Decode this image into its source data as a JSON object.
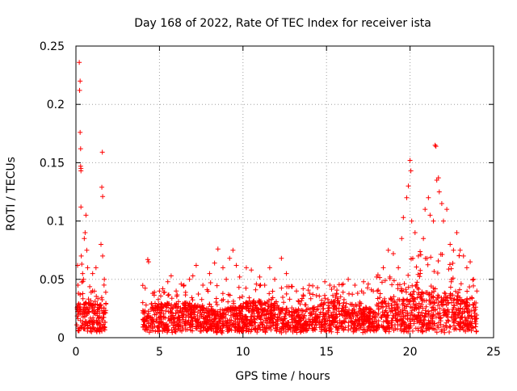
{
  "chart_data": {
    "type": "scatter",
    "title": "Day 168 of 2022, Rate Of TEC Index for receiver ista",
    "xlabel": "GPS time / hours",
    "ylabel": "ROTI / TECUs",
    "xlim": [
      0,
      25
    ],
    "ylim": [
      0,
      0.25
    ],
    "x_ticks": [
      0,
      5,
      10,
      15,
      20,
      25
    ],
    "x_tick_labels": [
      "0",
      "5",
      "10",
      "15",
      "20",
      "25"
    ],
    "y_ticks": [
      0,
      0.05,
      0.1,
      0.15,
      0.2,
      0.25
    ],
    "y_tick_labels": [
      "0",
      "0.05",
      "0.1",
      "0.15",
      "0.2",
      "0.25"
    ],
    "grid": true,
    "marker": "plus",
    "color": "#ff0000",
    "series": [
      {
        "name": "ROTI",
        "notes": "dense cloud of ROTI samples; gap between ~1.8 h and ~4 h",
        "points": [
          [
            0.1,
            0.062
          ],
          [
            0.12,
            0.045
          ],
          [
            0.15,
            0.038
          ],
          [
            0.18,
            0.02
          ],
          [
            0.2,
            0.236
          ],
          [
            0.22,
            0.212
          ],
          [
            0.25,
            0.22
          ],
          [
            0.25,
            0.176
          ],
          [
            0.28,
            0.162
          ],
          [
            0.28,
            0.147
          ],
          [
            0.3,
            0.143
          ],
          [
            0.3,
            0.145
          ],
          [
            0.3,
            0.112
          ],
          [
            0.32,
            0.07
          ],
          [
            0.35,
            0.063
          ],
          [
            0.4,
            0.055
          ],
          [
            0.45,
            0.05
          ],
          [
            0.5,
            0.085
          ],
          [
            0.55,
            0.09
          ],
          [
            0.6,
            0.105
          ],
          [
            0.65,
            0.075
          ],
          [
            0.7,
            0.06
          ],
          [
            1.0,
            0.055
          ],
          [
            1.2,
            0.06
          ],
          [
            1.5,
            0.08
          ],
          [
            1.6,
            0.07
          ],
          [
            1.55,
            0.129
          ],
          [
            1.6,
            0.121
          ],
          [
            1.58,
            0.159
          ],
          [
            1.7,
            0.05
          ],
          [
            4.0,
            0.03
          ],
          [
            4.2,
            0.028
          ],
          [
            4.3,
            0.067
          ],
          [
            4.35,
            0.065
          ],
          [
            4.6,
            0.038
          ],
          [
            5.0,
            0.04
          ],
          [
            5.2,
            0.042
          ],
          [
            5.5,
            0.048
          ],
          [
            5.7,
            0.053
          ],
          [
            6.0,
            0.04
          ],
          [
            6.3,
            0.046
          ],
          [
            6.8,
            0.05
          ],
          [
            7.0,
            0.053
          ],
          [
            7.2,
            0.062
          ],
          [
            7.6,
            0.045
          ],
          [
            8.0,
            0.055
          ],
          [
            8.3,
            0.064
          ],
          [
            8.5,
            0.076
          ],
          [
            8.8,
            0.06
          ],
          [
            9.0,
            0.05
          ],
          [
            9.2,
            0.068
          ],
          [
            9.4,
            0.075
          ],
          [
            9.6,
            0.062
          ],
          [
            9.8,
            0.052
          ],
          [
            10.2,
            0.06
          ],
          [
            10.5,
            0.058
          ],
          [
            10.8,
            0.046
          ],
          [
            11.0,
            0.052
          ],
          [
            11.3,
            0.045
          ],
          [
            11.6,
            0.06
          ],
          [
            11.9,
            0.05
          ],
          [
            12.3,
            0.068
          ],
          [
            12.6,
            0.055
          ],
          [
            12.9,
            0.044
          ],
          [
            13.2,
            0.04
          ],
          [
            13.6,
            0.042
          ],
          [
            14.0,
            0.038
          ],
          [
            14.4,
            0.036
          ],
          [
            14.9,
            0.048
          ],
          [
            15.2,
            0.045
          ],
          [
            15.6,
            0.038
          ],
          [
            16.0,
            0.046
          ],
          [
            16.3,
            0.05
          ],
          [
            16.7,
            0.045
          ],
          [
            17.1,
            0.04
          ],
          [
            17.5,
            0.046
          ],
          [
            17.8,
            0.04
          ],
          [
            18.0,
            0.052
          ],
          [
            18.4,
            0.06
          ],
          [
            18.7,
            0.075
          ],
          [
            19.0,
            0.072
          ],
          [
            19.3,
            0.06
          ],
          [
            19.5,
            0.085
          ],
          [
            19.6,
            0.103
          ],
          [
            19.8,
            0.12
          ],
          [
            19.9,
            0.13
          ],
          [
            20.0,
            0.152
          ],
          [
            20.05,
            0.143
          ],
          [
            20.1,
            0.1
          ],
          [
            20.3,
            0.09
          ],
          [
            20.5,
            0.07
          ],
          [
            20.8,
            0.085
          ],
          [
            20.9,
            0.11
          ],
          [
            21.1,
            0.12
          ],
          [
            21.2,
            0.105
          ],
          [
            21.4,
            0.1
          ],
          [
            21.5,
            0.165
          ],
          [
            21.55,
            0.164
          ],
          [
            21.6,
            0.135
          ],
          [
            21.7,
            0.137
          ],
          [
            21.75,
            0.125
          ],
          [
            21.9,
            0.115
          ],
          [
            22.0,
            0.1
          ],
          [
            22.2,
            0.11
          ],
          [
            22.4,
            0.08
          ],
          [
            22.6,
            0.075
          ],
          [
            22.8,
            0.09
          ],
          [
            23.0,
            0.075
          ],
          [
            23.2,
            0.07
          ],
          [
            23.4,
            0.06
          ],
          [
            23.6,
            0.065
          ],
          [
            23.8,
            0.05
          ],
          [
            24.0,
            0.04
          ]
        ]
      }
    ]
  }
}
